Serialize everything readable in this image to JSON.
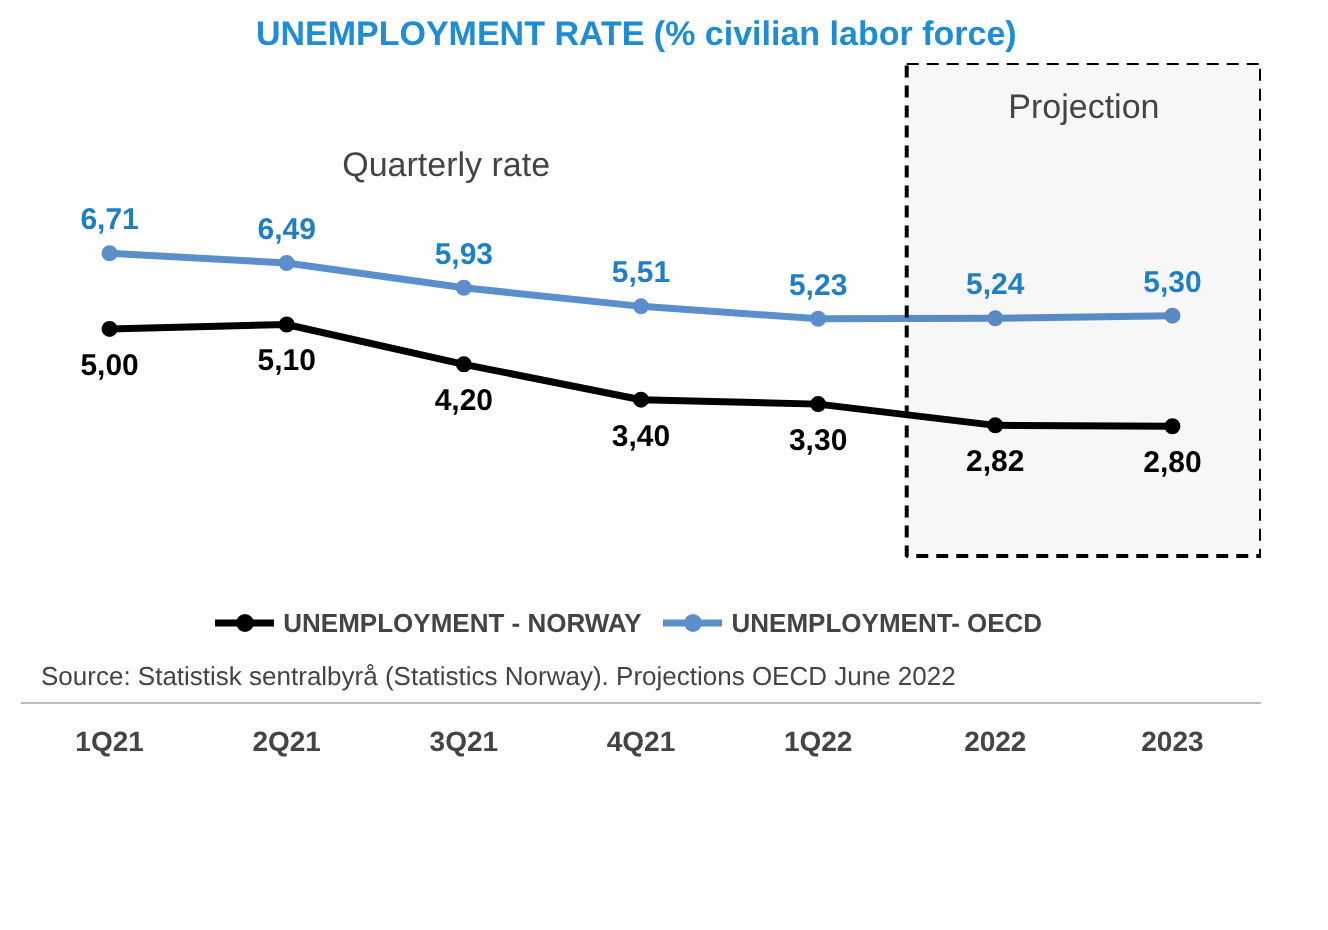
{
  "chart_data": {
    "type": "line",
    "title": "UNEMPLOYMENT RATE  (% civilian labor force)",
    "categories": [
      "1Q21",
      "2Q21",
      "3Q21",
      "4Q21",
      "1Q22",
      "2022",
      "2023"
    ],
    "series": [
      {
        "name": "UNEMPLOYMENT - NORWAY",
        "color": "#000000",
        "values": [
          5.0,
          5.1,
          4.2,
          3.4,
          3.3,
          2.82,
          2.8
        ],
        "value_labels": [
          "5,00",
          "5,10",
          "4,20",
          "3,40",
          "3,30",
          "2,82",
          "2,80"
        ]
      },
      {
        "name": "UNEMPLOYMENT- OECD",
        "color": "#5b8fcc",
        "values": [
          6.71,
          6.49,
          5.93,
          5.51,
          5.23,
          5.24,
          5.3
        ],
        "value_labels": [
          "6,71",
          "6,49",
          "5,93",
          "5,51",
          "5,23",
          "5,24",
          "5,30"
        ]
      }
    ],
    "tick_labels": "x",
    "grid": false,
    "legend": "bottom",
    "marker": "circle",
    "line_style": "solid",
    "bands": [
      {
        "axis": "x",
        "from": "2022",
        "to": "2023",
        "label": "Projection"
      }
    ],
    "annotations": [
      "Quarterly rate",
      "Source: Statistisk sentralbyrå (Statistics Norway). Projections OECD June 2022"
    ]
  }
}
